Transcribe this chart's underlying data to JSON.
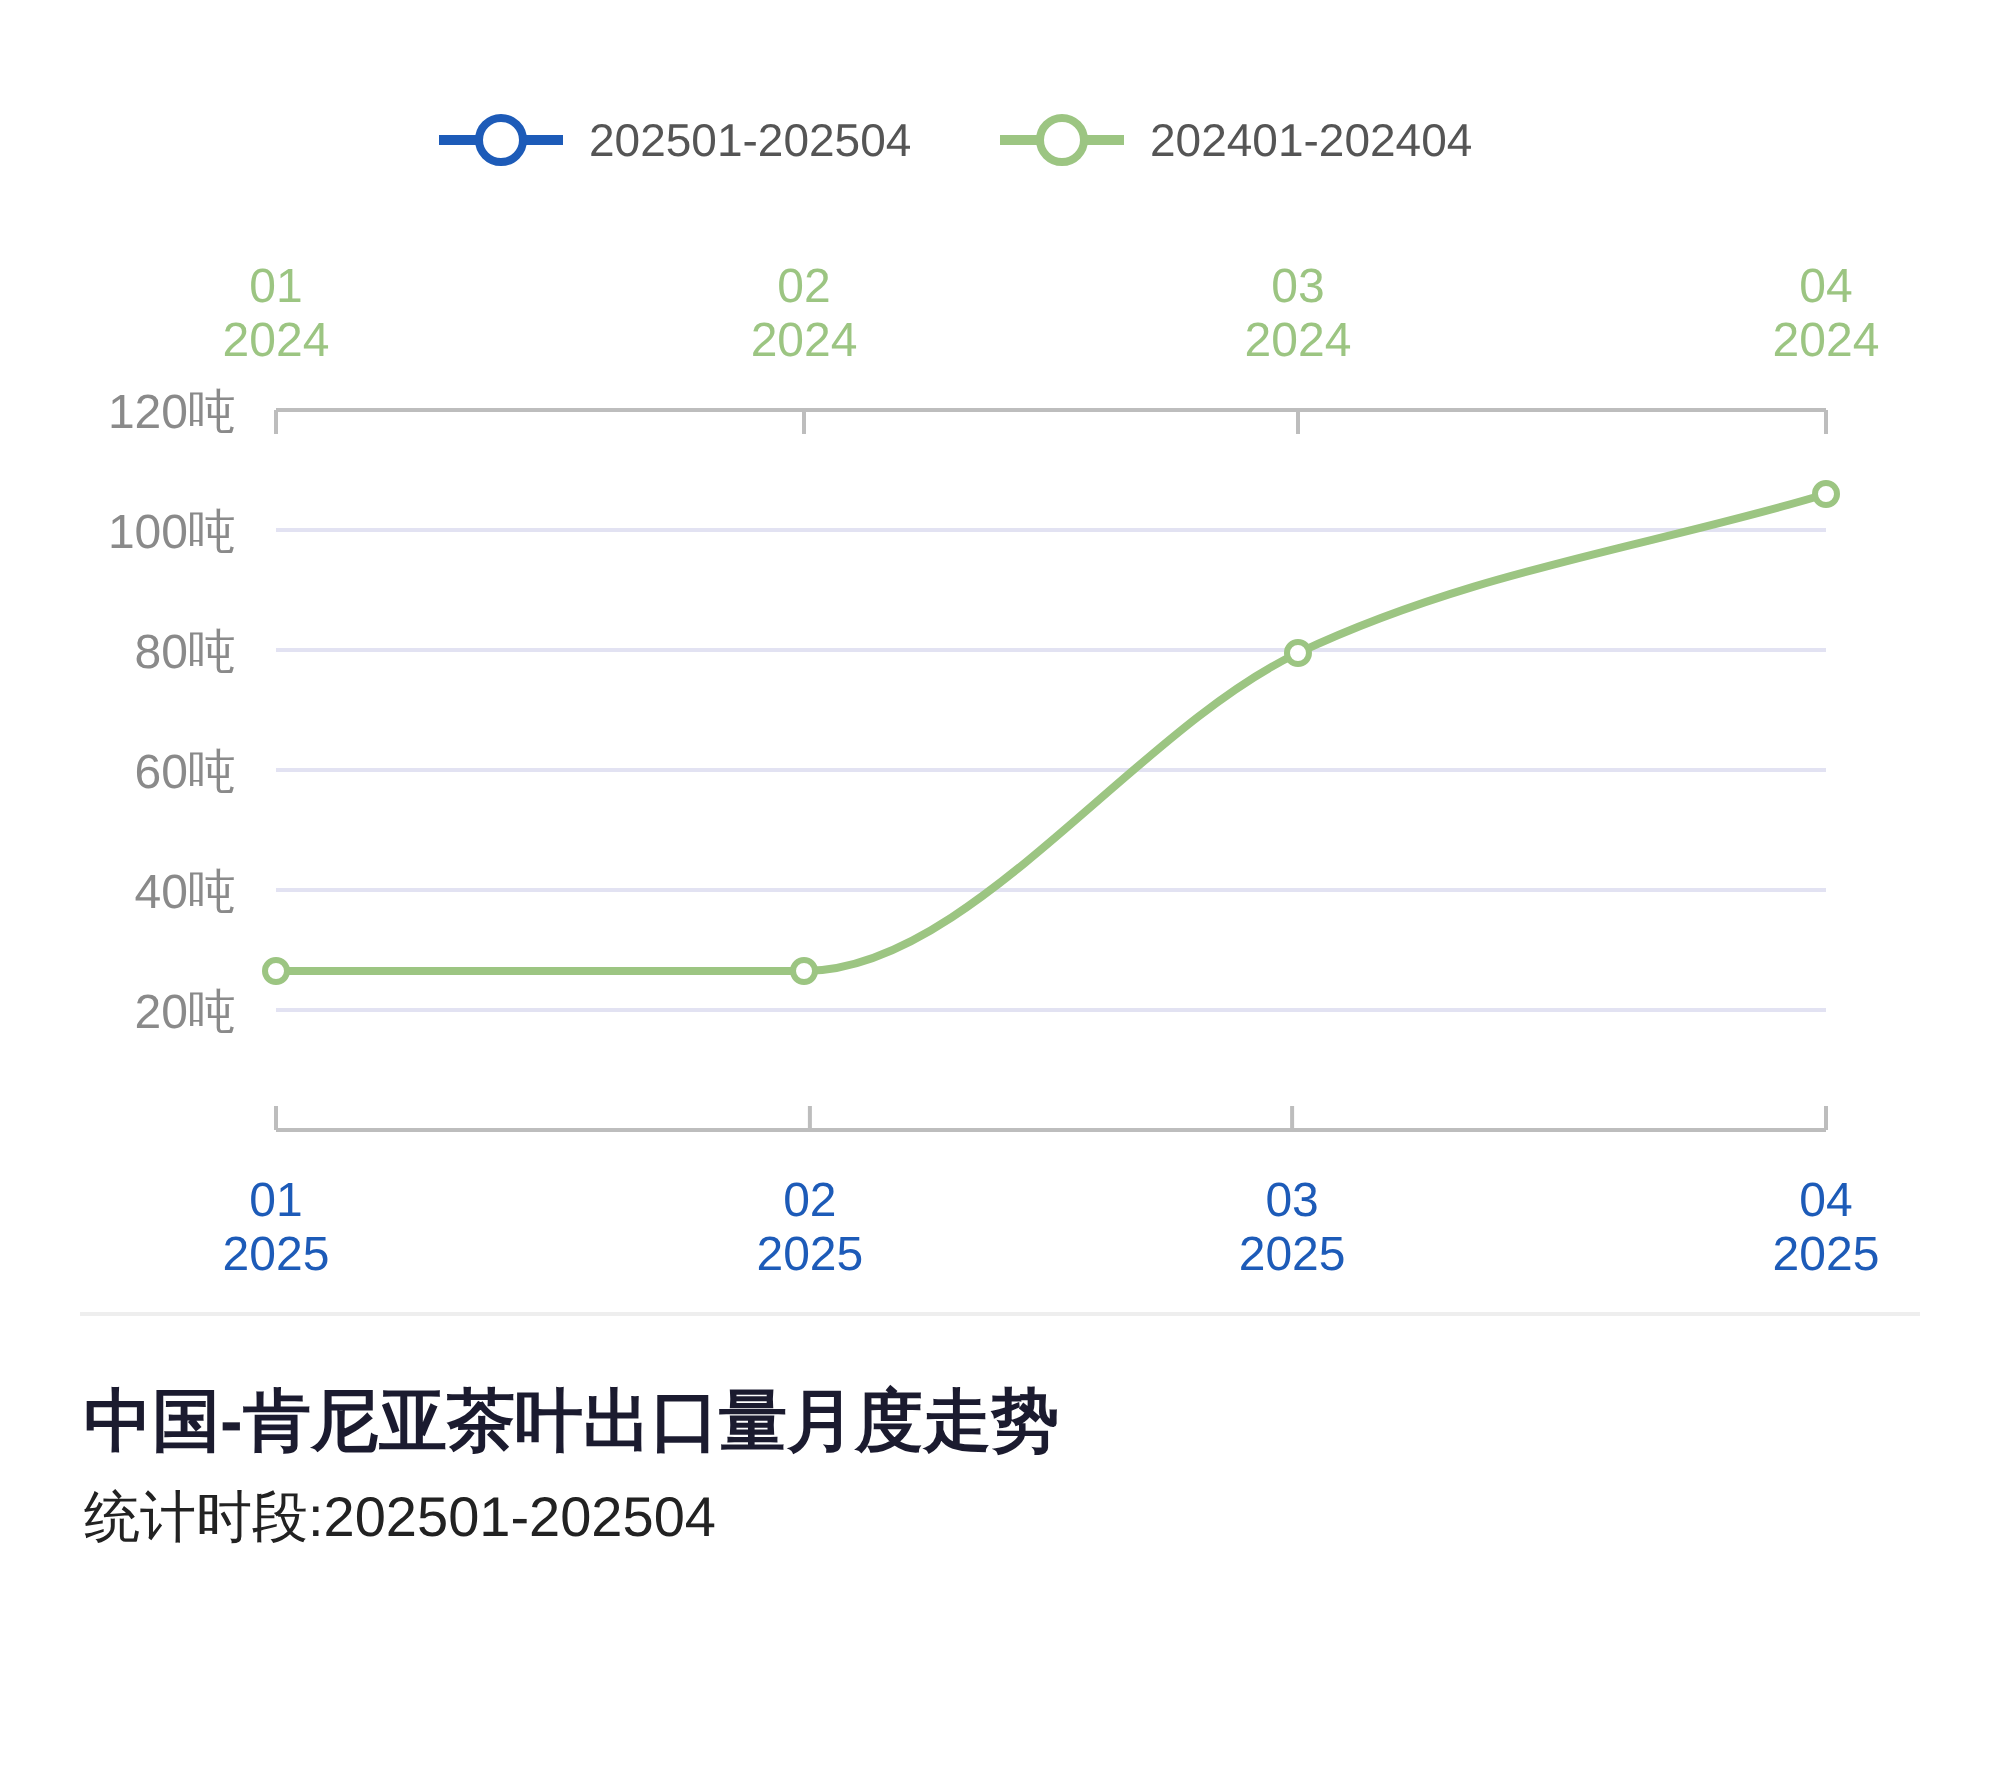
{
  "chart_data": {
    "type": "line",
    "title": "中国-肯尼亚茶叶出口量月度走势",
    "subtitle": "统计时段:202501-202504",
    "xlim": [
      "2025-01",
      "2025-04"
    ],
    "xticks": [
      {
        "value": "2025-01",
        "label": "01\n2025"
      },
      {
        "value": "2025-02",
        "label": "02\n2025"
      },
      {
        "value": "2025-03",
        "label": "03\n2025"
      },
      {
        "value": "2025-04",
        "label": "04\n2025"
      }
    ],
    "x2lim": [
      "2024-01",
      "2024-04"
    ],
    "x2ticks": [
      {
        "value": "2024-01",
        "label": "01\n2024"
      },
      {
        "value": "2024-02",
        "label": "02\n2024"
      },
      {
        "value": "2024-03",
        "label": "03\n2024"
      },
      {
        "value": "2024-04",
        "label": "04\n2024"
      }
    ],
    "series": [
      {
        "name": "202501-202504",
        "color": "#1d5bb8",
        "values": [
          null,
          null,
          null,
          null
        ]
      },
      {
        "name": "202401-202404",
        "color": "#9cc582",
        "axis": "x2",
        "x": [
          "2024-01",
          "2024-02",
          "2024-03",
          "2024-04"
        ],
        "values": [
          26.5,
          26.5,
          79.5,
          106
        ]
      }
    ],
    "ylim": [
      0,
      120
    ],
    "yticks": [
      {
        "value": 0,
        "label": null
      },
      {
        "value": 20,
        "label": "20吨"
      },
      {
        "value": 40,
        "label": "40吨"
      },
      {
        "value": 60,
        "label": "60吨"
      },
      {
        "value": 80,
        "label": "80吨"
      },
      {
        "value": 100,
        "label": "100吨"
      },
      {
        "value": 120,
        "label": "120吨"
      }
    ],
    "grid": "y",
    "legend": "top",
    "marker": "circle"
  }
}
